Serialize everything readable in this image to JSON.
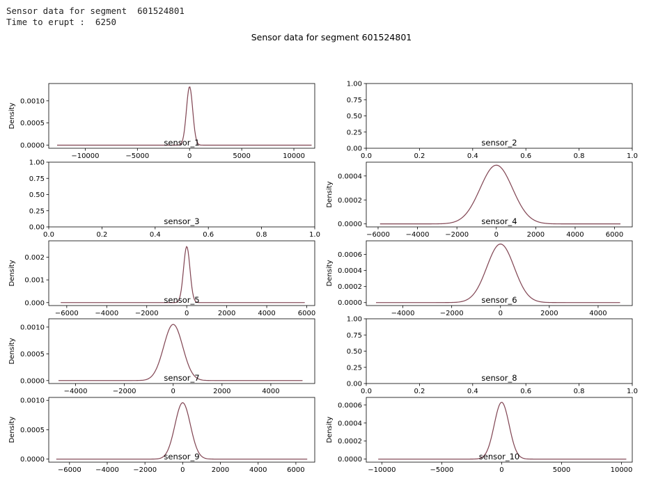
{
  "console": {
    "line1": "Sensor data for segment  601524801",
    "line2": "Time to erupt :  6250"
  },
  "figure_title": "Sensor data for segment 601524801",
  "colors": {
    "kde": "#a06070",
    "kde_dark": "#5a3038",
    "axes": "#000000"
  },
  "chart_data": [
    {
      "type": "line",
      "title": "sensor_1",
      "ylabel": "Density",
      "empty": false,
      "xlim": [
        -13500,
        12000
      ],
      "ylim": [
        -7e-05,
        0.00139
      ],
      "xticks": [
        -10000,
        -5000,
        0,
        5000,
        10000
      ],
      "xtick_labels": [
        "−10000",
        "−5000",
        "0",
        "5000",
        "10000"
      ],
      "yticks": [
        0.0,
        0.0005,
        0.001
      ],
      "ytick_labels": [
        "0.0000",
        "0.0005",
        "0.0010"
      ],
      "x_range": [
        -12700,
        11700
      ],
      "peak_x": 0,
      "peak_density": 0.00132,
      "sigma": 300
    },
    {
      "type": "line",
      "title": "sensor_2",
      "ylabel": "",
      "empty": true,
      "xlim": [
        0,
        1
      ],
      "ylim": [
        0,
        1
      ],
      "xticks": [
        0,
        0.2,
        0.4,
        0.6,
        0.8,
        1.0
      ],
      "xtick_labels": [
        "0.0",
        "0.2",
        "0.4",
        "0.6",
        "0.8",
        "1.0"
      ],
      "yticks": [
        0,
        0.25,
        0.5,
        0.75,
        1.0
      ],
      "ytick_labels": [
        "0.00",
        "0.25",
        "0.50",
        "0.75",
        "1.00"
      ]
    },
    {
      "type": "line",
      "title": "sensor_3",
      "ylabel": "",
      "empty": true,
      "xlim": [
        0,
        1
      ],
      "ylim": [
        0,
        1
      ],
      "xticks": [
        0,
        0.2,
        0.4,
        0.6,
        0.8,
        1.0
      ],
      "xtick_labels": [
        "0.0",
        "0.2",
        "0.4",
        "0.6",
        "0.8",
        "1.0"
      ],
      "yticks": [
        0,
        0.25,
        0.5,
        0.75,
        1.0
      ],
      "ytick_labels": [
        "0.00",
        "0.25",
        "0.50",
        "0.75",
        "1.00"
      ]
    },
    {
      "type": "line",
      "title": "sensor_4",
      "ylabel": "Density",
      "empty": false,
      "xlim": [
        -6600,
        6900
      ],
      "ylim": [
        -2.5e-05,
        0.000515
      ],
      "xticks": [
        -6000,
        -4000,
        -2000,
        0,
        2000,
        4000,
        6000
      ],
      "xtick_labels": [
        "−6000",
        "−4000",
        "−2000",
        "0",
        "2000",
        "4000",
        "6000"
      ],
      "yticks": [
        0.0,
        0.0002,
        0.0004
      ],
      "ytick_labels": [
        "0.0000",
        "0.0002",
        "0.0004"
      ],
      "x_range": [
        -5900,
        6300
      ],
      "peak_x": 0,
      "peak_density": 0.00049,
      "sigma": 820
    },
    {
      "type": "line",
      "title": "sensor_5",
      "ylabel": "Density",
      "empty": false,
      "xlim": [
        -6900,
        6400
      ],
      "ylim": [
        -0.00013,
        0.00272
      ],
      "xticks": [
        -6000,
        -4000,
        -2000,
        0,
        2000,
        4000,
        6000
      ],
      "xtick_labels": [
        "−6000",
        "−4000",
        "−2000",
        "0",
        "2000",
        "4000",
        "6000"
      ],
      "yticks": [
        0.0,
        0.001,
        0.002
      ],
      "ytick_labels": [
        "0.000",
        "0.001",
        "0.002"
      ],
      "x_range": [
        -6300,
        5900
      ],
      "peak_x": 0,
      "peak_density": 0.00247,
      "sigma": 160
    },
    {
      "type": "line",
      "title": "sensor_6",
      "ylabel": "Density",
      "empty": false,
      "xlim": [
        -5500,
        5400
      ],
      "ylim": [
        -3.7e-05,
        0.00077
      ],
      "xticks": [
        -4000,
        -2000,
        0,
        2000,
        4000
      ],
      "xtick_labels": [
        "−4000",
        "−2000",
        "0",
        "2000",
        "4000"
      ],
      "yticks": [
        0.0,
        0.0002,
        0.0004,
        0.0006
      ],
      "ytick_labels": [
        "0.0000",
        "0.0002",
        "0.0004",
        "0.0006"
      ],
      "x_range": [
        -5100,
        4900
      ],
      "peak_x": 0,
      "peak_density": 0.00073,
      "sigma": 560
    },
    {
      "type": "line",
      "title": "sensor_7",
      "ylabel": "Density",
      "empty": false,
      "xlim": [
        -5100,
        5800
      ],
      "ylim": [
        -5.5e-05,
        0.001155
      ],
      "xticks": [
        -4000,
        -2000,
        0,
        2000,
        4000
      ],
      "xtick_labels": [
        "−4000",
        "−2000",
        "0",
        "2000",
        "4000"
      ],
      "yticks": [
        0.0,
        0.0005,
        0.001
      ],
      "ytick_labels": [
        "0.0000",
        "0.0005",
        "0.0010"
      ],
      "x_range": [
        -4700,
        5300
      ],
      "peak_x": 0,
      "peak_density": 0.00105,
      "sigma": 390
    },
    {
      "type": "line",
      "title": "sensor_8",
      "ylabel": "",
      "empty": true,
      "xlim": [
        0,
        1
      ],
      "ylim": [
        0,
        1
      ],
      "xticks": [
        0,
        0.2,
        0.4,
        0.6,
        0.8,
        1.0
      ],
      "xtick_labels": [
        "0.0",
        "0.2",
        "0.4",
        "0.6",
        "0.8",
        "1.0"
      ],
      "yticks": [
        0,
        0.25,
        0.5,
        0.75,
        1.0
      ],
      "ytick_labels": [
        "0.00",
        "0.25",
        "0.50",
        "0.75",
        "1.00"
      ]
    },
    {
      "type": "line",
      "title": "sensor_9",
      "ylabel": "Density",
      "empty": false,
      "xlim": [
        -7100,
        7000
      ],
      "ylim": [
        -5.2e-05,
        0.00105
      ],
      "xticks": [
        -6000,
        -4000,
        -2000,
        0,
        2000,
        4000,
        6000
      ],
      "xtick_labels": [
        "−6000",
        "−4000",
        "−2000",
        "0",
        "2000",
        "4000",
        "6000"
      ],
      "yticks": [
        0.0,
        0.0005,
        0.001
      ],
      "ytick_labels": [
        "0.0000",
        "0.0005",
        "0.0010"
      ],
      "x_range": [
        -6700,
        6600
      ],
      "peak_x": 0,
      "peak_density": 0.00096,
      "sigma": 410
    },
    {
      "type": "line",
      "title": "sensor_10",
      "ylabel": "Density",
      "empty": false,
      "xlim": [
        -11300,
        10900
      ],
      "ylim": [
        -3.4e-05,
        0.000684
      ],
      "xticks": [
        -10000,
        -5000,
        0,
        5000,
        10000
      ],
      "xtick_labels": [
        "−10000",
        "−5000",
        "0",
        "5000",
        "10000"
      ],
      "yticks": [
        0.0,
        0.0002,
        0.0004,
        0.0006
      ],
      "ytick_labels": [
        "0.0000",
        "0.0002",
        "0.0004",
        "0.0006"
      ],
      "x_range": [
        -10300,
        10400
      ],
      "peak_x": 0,
      "peak_density": 0.00063,
      "sigma": 620
    }
  ]
}
